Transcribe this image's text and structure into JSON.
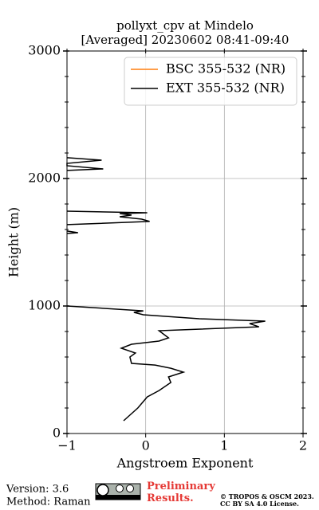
{
  "chart_data": {
    "type": "line",
    "title": "pollyxt_cpv at Mindelo",
    "subtitle": "[Averaged] 20230602 08:41-09:40",
    "xlabel": "Angstroem Exponent",
    "ylabel": "Height (m)",
    "xlim": [
      -1,
      2
    ],
    "xticks": [
      {
        "value": -1,
        "label": "−1"
      },
      0,
      1,
      2
    ],
    "ylim": [
      0,
      3000
    ],
    "yticks": [
      0,
      1000,
      2000,
      3000
    ],
    "yminorticks": [
      200,
      400,
      600,
      800,
      1200,
      1400,
      1600,
      1800,
      2200,
      2400,
      2600,
      2800
    ],
    "grid": true,
    "legend": "upper right",
    "series": [
      {
        "name": "BSC 355-532 (NR)",
        "color": "#ff7f0e",
        "x": [],
        "y": []
      },
      {
        "name": "EXT 355-532 (NR)",
        "color": "#000000",
        "x": [
          -0.28,
          -0.1,
          0.02,
          0.17,
          0.32,
          0.29,
          0.48,
          0.32,
          0.12,
          -0.18,
          -0.2,
          -0.13,
          -0.31,
          -0.18,
          0.17,
          0.29,
          0.17,
          1.44,
          1.32,
          1.52,
          0.68,
          -0.03,
          -0.15,
          -0.03,
          -1.0,
          null,
          -1.0,
          -0.86,
          -1.0,
          null,
          -1.0,
          0.05,
          -0.05,
          -0.33,
          -0.18,
          -0.33,
          0.02,
          -1.0,
          null,
          -1.0,
          -0.54,
          -1.0,
          -1.0,
          -0.56,
          -1.0
        ],
        "y": [
          100,
          200,
          287,
          337,
          400,
          444,
          481,
          512,
          537,
          550,
          600,
          631,
          669,
          700,
          725,
          750,
          806,
          837,
          862,
          881,
          900,
          931,
          950,
          962,
          1000,
          null,
          1569,
          1575,
          1588,
          null,
          1638,
          1663,
          1681,
          1700,
          1713,
          1725,
          1731,
          1744,
          null,
          2063,
          2075,
          2100,
          2119,
          2144,
          2163
        ]
      }
    ]
  },
  "footer": {
    "version": "Version: 3.6",
    "method": "Method: Raman",
    "status": "Preliminary Results.",
    "copyright": "© TROPOS & OSCM 2023.",
    "license": "CC BY SA 4.0 License."
  }
}
